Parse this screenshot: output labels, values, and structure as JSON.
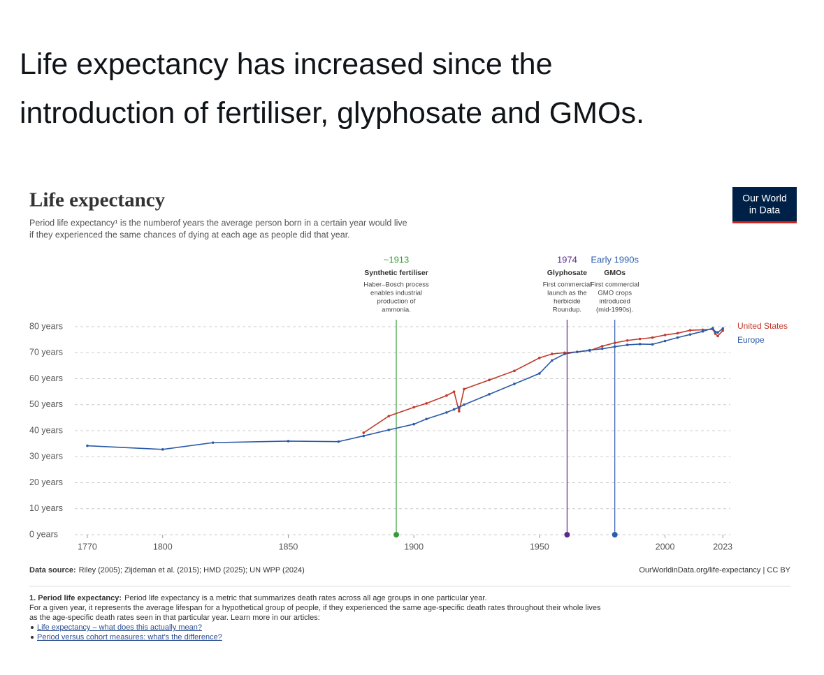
{
  "post": {
    "text": [
      "Life expectancy has increased since the",
      "introduction of fertiliser, glyphosate and GMOs."
    ]
  },
  "logo": [
    "Our World",
    "in Data"
  ],
  "chart_data": {
    "type": "line",
    "title": "Life expectancy",
    "subtitle": [
      "Period life expectancy¹ is the numberof years the average person born in a certain year would live",
      "if they experienced the same chances of dying at each age as people did that year."
    ],
    "x": [
      1770,
      1800,
      1820,
      1850,
      1870,
      1880,
      1890,
      1900,
      1905,
      1913,
      1916,
      1918,
      1920,
      1930,
      1940,
      1950,
      1955,
      1960,
      1965,
      1970,
      1975,
      1980,
      1985,
      1990,
      1995,
      2000,
      2005,
      2010,
      2015,
      2019,
      2020,
      2021,
      2023
    ],
    "series": [
      {
        "name": "United States",
        "color": "#c0392b",
        "values": [
          null,
          null,
          null,
          null,
          null,
          39.2,
          45.6,
          49,
          50.5,
          53.5,
          55,
          47.5,
          56,
          59.5,
          63,
          68,
          69.5,
          70,
          70.3,
          70.8,
          72.5,
          73.8,
          74.7,
          75.3,
          75.8,
          76.8,
          77.5,
          78.6,
          78.8,
          79,
          77.3,
          76.4,
          78.5
        ]
      },
      {
        "name": "Europe",
        "color": "#2c5aa8",
        "values": [
          34.2,
          32.8,
          35.4,
          36,
          35.8,
          38,
          40.3,
          42.5,
          44.5,
          47,
          48.2,
          49,
          50,
          54,
          58,
          62,
          67,
          69.5,
          70.3,
          71,
          71.5,
          72.3,
          73,
          73.3,
          73.2,
          74.5,
          75.8,
          77,
          78.2,
          79.4,
          78,
          77.8,
          79.3
        ]
      }
    ],
    "xlim": [
      1765,
      2026
    ],
    "xticks": [
      1770,
      1800,
      1850,
      1900,
      1950,
      2000,
      2023
    ],
    "ylim": [
      0,
      80
    ],
    "yticks": [
      {
        "value": 0,
        "label": "0 years"
      },
      {
        "value": 10,
        "label": "10 years"
      },
      {
        "value": 20,
        "label": "20 years"
      },
      {
        "value": 30,
        "label": "30 years"
      },
      {
        "value": 40,
        "label": "40 years"
      },
      {
        "value": 50,
        "label": "50 years"
      },
      {
        "value": 60,
        "label": "60 years"
      },
      {
        "value": 70,
        "label": "70 years"
      },
      {
        "value": 80,
        "label": "80 years"
      }
    ],
    "grid": true,
    "annotations": [
      {
        "x": 1893,
        "color": "#3a9a3a",
        "label": "~1913",
        "title": "Synthetic fertiliser",
        "text": [
          "Haber–Bosch process",
          "enables industrial",
          "production of",
          "ammonia."
        ]
      },
      {
        "x": 1961,
        "color": "#5b2a8c",
        "label": "1974",
        "title": "Glyphosate",
        "text": [
          "First commercial",
          "launch as the",
          "herbicide",
          "Roundup."
        ]
      },
      {
        "x": 1980,
        "color": "#2a5db0",
        "label": "Early 1990s",
        "title": "GMOs",
        "text": [
          "First commercial",
          "GMO crops",
          "introduced",
          "(mid-1990s)."
        ]
      }
    ]
  },
  "source": {
    "label": "Data source:",
    "text": "Riley (2005); Zijdeman et al. (2015); HMD (2025); UN WPP (2024)"
  },
  "credit": "OurWorldinData.org/life-expectancy | CC BY",
  "footnote": {
    "label": "1. Period life expectancy:",
    "lines": [
      "Period life expectancy is a metric that summarizes death rates across all age groups in one particular year.",
      "For a given year, it represents the average lifespan for a hypothetical group of people, if they experienced the same age-specific death rates throughout their whole lives",
      "as the age-specific death rates seen in that particular year. Learn more in our articles:"
    ],
    "links": [
      "Life expectancy – what does this actually mean?",
      "Period versus cohort measures: what's the difference?"
    ]
  }
}
